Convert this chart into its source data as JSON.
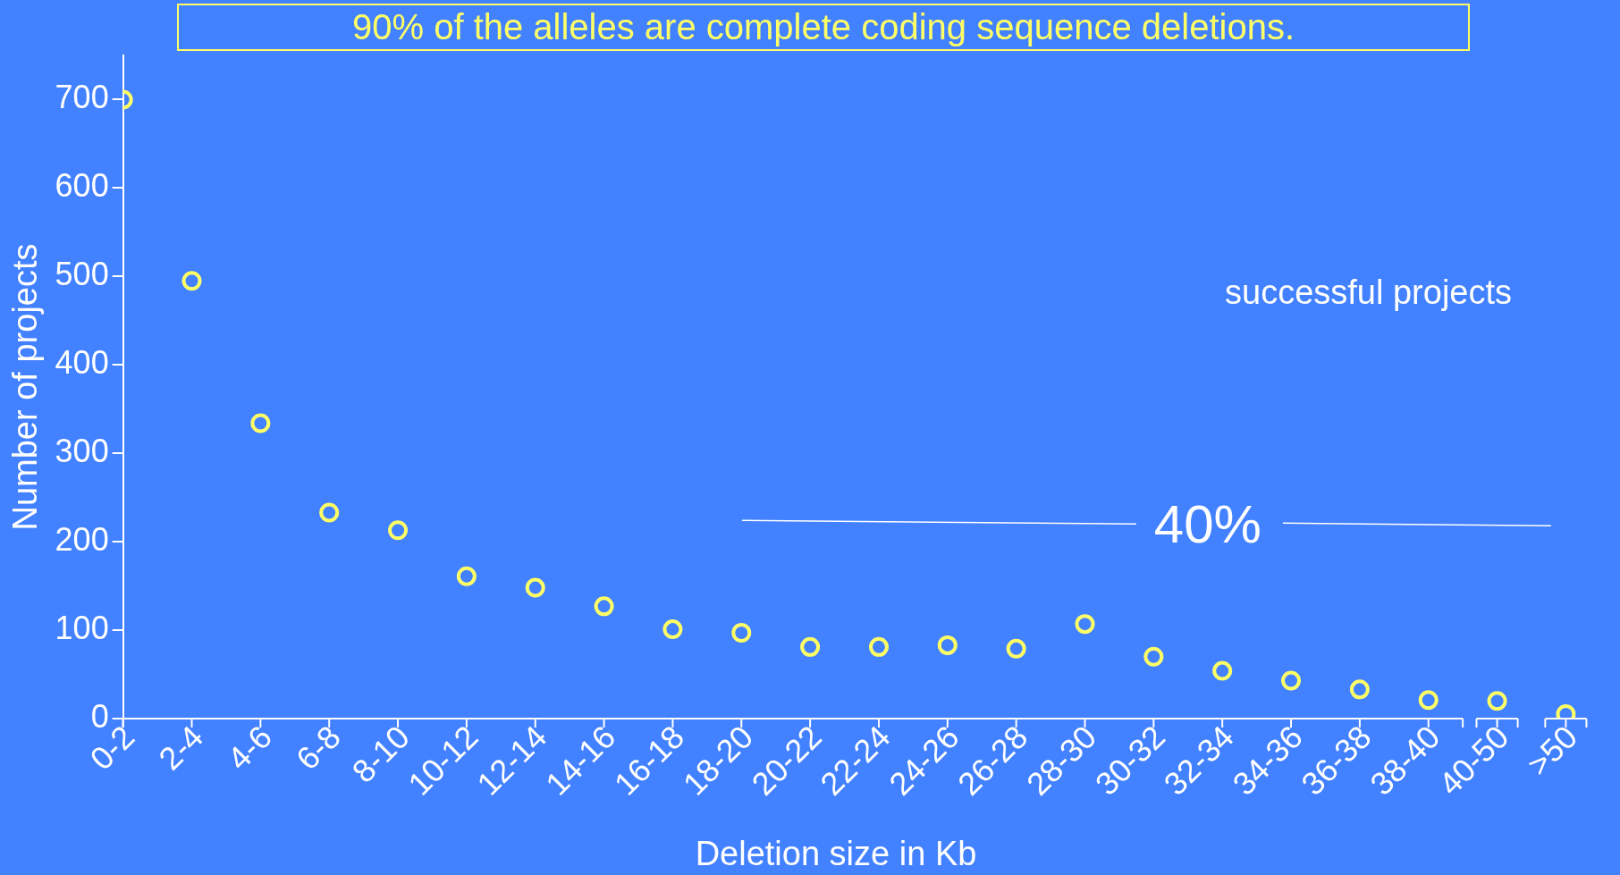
{
  "chart_data": {
    "type": "scatter",
    "title": "90% of the alleles are complete coding sequence deletions.",
    "xlabel": "Deletion size in Kb",
    "ylabel": "Number of projects",
    "categories": [
      "0-2",
      "2-4",
      "4-6",
      "6-8",
      "8-10",
      "10-12",
      "12-14",
      "14-16",
      "16-18",
      "18-20",
      "20-22",
      "22-24",
      "24-26",
      "26-28",
      "28-30",
      "30-32",
      "32-34",
      "34-36",
      "36-38",
      "38-40",
      "40-50",
      ">50"
    ],
    "values": [
      700,
      495,
      334,
      233,
      213,
      161,
      148,
      127,
      101,
      97,
      81,
      81,
      83,
      79,
      107,
      70,
      54,
      43,
      33,
      21,
      20,
      5
    ],
    "color": "#ffff66",
    "marker": "circle",
    "ylim": [
      0,
      750
    ],
    "yticks": [
      0,
      100,
      200,
      300,
      400,
      500,
      600,
      700
    ],
    "grid": false,
    "legend": false,
    "annotations": [
      "successful projects",
      "40%"
    ]
  }
}
